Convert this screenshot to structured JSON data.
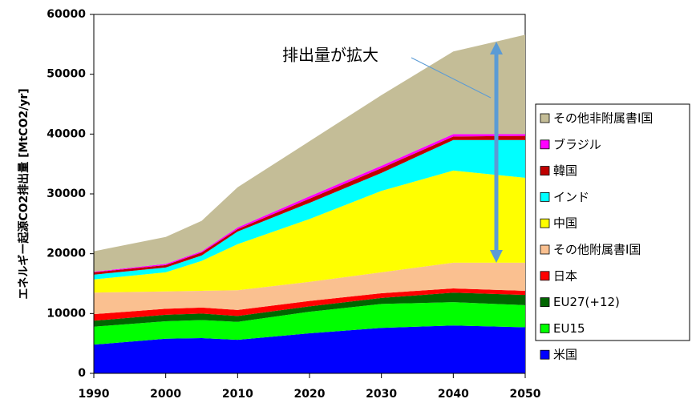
{
  "chart_data": {
    "type": "stacked_area",
    "ylabel": "エネルギー起源CO2排出量 [MtCO2/yr]",
    "annotation": "排出量が拡大",
    "x": [
      1990,
      2000,
      2005,
      2010,
      2020,
      2030,
      2040,
      2050
    ],
    "xlim": [
      1990,
      2050
    ],
    "xticks": [
      1990,
      2000,
      2010,
      2020,
      2030,
      2040,
      2050
    ],
    "ylim": [
      0,
      60000
    ],
    "yticks": [
      0,
      10000,
      20000,
      30000,
      40000,
      50000,
      60000
    ],
    "legend": "right",
    "series": [
      {
        "name": "米国",
        "color": "#0000ff",
        "values": [
          4800,
          5800,
          5900,
          5600,
          6700,
          7600,
          8000,
          7700
        ]
      },
      {
        "name": "EU15",
        "color": "#00ff00",
        "values": [
          3000,
          2900,
          3000,
          3000,
          3600,
          4000,
          3900,
          3700
        ]
      },
      {
        "name": "EU27(+12)",
        "color": "#006600",
        "values": [
          1000,
          1100,
          1100,
          1000,
          900,
          1000,
          1600,
          1700
        ]
      },
      {
        "name": "日本",
        "color": "#ff0000",
        "values": [
          1100,
          1000,
          1000,
          1000,
          900,
          800,
          700,
          700
        ]
      },
      {
        "name": "その他附属書I国",
        "color": "#fac090",
        "values": [
          3600,
          2900,
          2800,
          3300,
          3200,
          3500,
          4300,
          4700
        ]
      },
      {
        "name": "中国",
        "color": "#ffff00",
        "values": [
          2200,
          3200,
          5000,
          7700,
          10500,
          13600,
          15400,
          14200
        ]
      },
      {
        "name": "インド",
        "color": "#00ffff",
        "values": [
          800,
          800,
          900,
          2100,
          2700,
          3000,
          5100,
          6300
        ]
      },
      {
        "name": "韓国",
        "color": "#c00000",
        "values": [
          400,
          400,
          500,
          400,
          700,
          800,
          600,
          700
        ]
      },
      {
        "name": "ブラジル",
        "color": "#ff00ff",
        "values": [
          100,
          200,
          200,
          300,
          400,
          400,
          400,
          300
        ]
      },
      {
        "name": "その他非附属書I国",
        "color": "#c4bd97",
        "values": [
          3400,
          4500,
          5100,
          6700,
          9200,
          11800,
          13800,
          16600
        ]
      }
    ]
  }
}
